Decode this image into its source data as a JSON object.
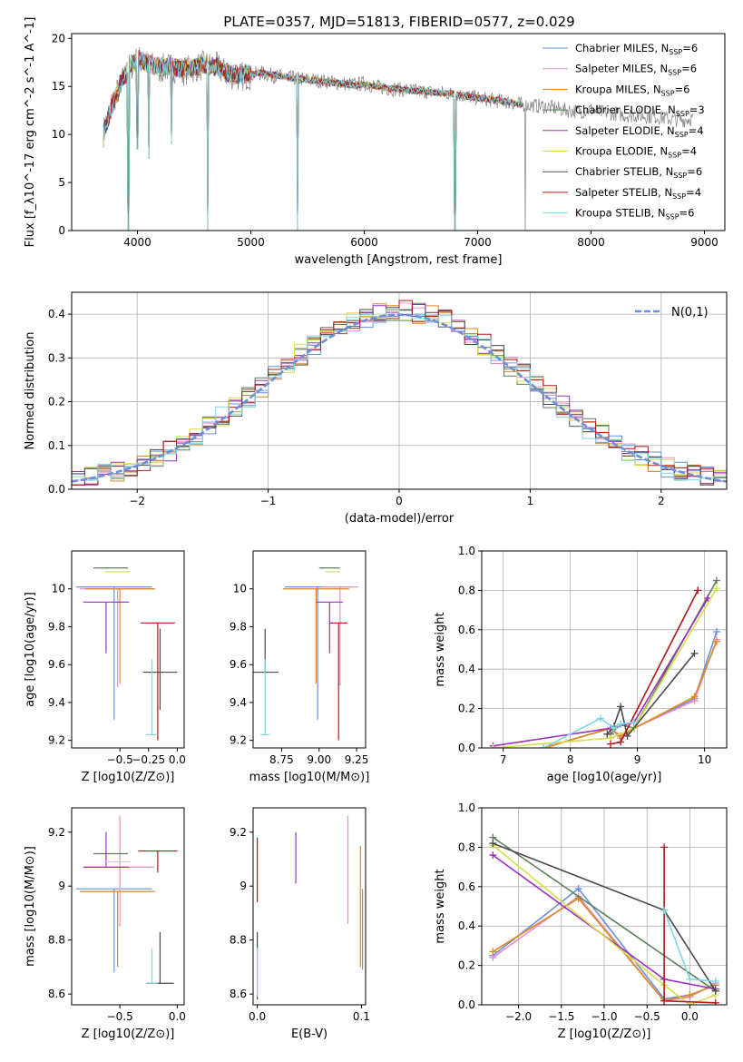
{
  "figure_title": "PLATE=0357, MJD=51813, FIBERID=0577, z=0.029",
  "palette": [
    "#6a8fdc",
    "#e58fc8",
    "#d88a1e",
    "#5a7f5a",
    "#9b30c0",
    "#d6de4a",
    "#4a4a4a",
    "#b01818",
    "#7fd8e0"
  ],
  "chart_data": [
    {
      "id": "spectrum",
      "type": "line",
      "title": "PLATE=0357, MJD=51813, FIBERID=0577, z=0.029",
      "xlabel": "wavelength [Angstrom, rest frame]",
      "ylabel": "Flux [f_λ10^-17 erg cm^-2 s^-1 A^-1]",
      "xlim": [
        3420,
        9180
      ],
      "ylim": [
        0,
        20.5
      ],
      "xticks": [
        4000,
        5000,
        6000,
        7000,
        8000,
        9000
      ],
      "yticks": [
        0,
        5,
        10,
        15,
        20
      ],
      "grid": false,
      "legend_position": "top-right",
      "data_x": [
        3700,
        3780,
        3850,
        3920,
        4000,
        4100,
        4200,
        4300,
        4400,
        4500,
        4600,
        4700,
        4800,
        4900,
        5000,
        5100,
        5200,
        5300,
        5400,
        5500,
        5600,
        5700,
        5800,
        5900,
        6000,
        6100,
        6200,
        6300,
        6400,
        6500,
        6600,
        6700,
        6800,
        6900,
        7000,
        7100,
        7200,
        7300,
        7400,
        7500,
        7600,
        7700,
        7800,
        7900,
        8000,
        8100,
        8200,
        8300,
        8400,
        8500,
        8600,
        8700,
        8800,
        8900
      ],
      "data_y": [
        10.2,
        13.5,
        15.0,
        16.8,
        17.8,
        17.2,
        16.8,
        17.0,
        16.6,
        16.9,
        17.2,
        17.0,
        16.2,
        16.0,
        16.2,
        16.4,
        16.1,
        16.0,
        15.8,
        15.7,
        15.6,
        15.5,
        15.3,
        15.2,
        15.3,
        15.0,
        14.8,
        14.7,
        14.6,
        14.5,
        14.4,
        14.3,
        14.2,
        14.0,
        13.8,
        13.6,
        13.5,
        13.3,
        13.1,
        13.0,
        12.9,
        12.7,
        12.5,
        12.4,
        12.6,
        12.3,
        12.2,
        12.0,
        12.0,
        11.9,
        11.8,
        11.6,
        11.5,
        11.7
      ],
      "model_x": [
        3700,
        3780,
        3850,
        3920,
        4000,
        4100,
        4200,
        4300,
        4400,
        4500,
        4600,
        4700,
        4800,
        4900,
        5000,
        5100,
        5200,
        5300,
        5400,
        5500,
        5600,
        5700,
        5800,
        5900,
        6000,
        6100,
        6200,
        6300,
        6400,
        6500,
        6600,
        6700,
        6800,
        6900,
        7000,
        7100,
        7200,
        7300,
        7400
      ],
      "model_y": [
        10.0,
        13.2,
        15.2,
        16.9,
        17.9,
        17.4,
        17.0,
        17.1,
        16.8,
        17.0,
        17.2,
        17.0,
        16.4,
        16.2,
        16.3,
        16.4,
        16.2,
        16.0,
        15.8,
        15.7,
        15.6,
        15.4,
        15.3,
        15.1,
        15.2,
        15.0,
        14.8,
        14.7,
        14.6,
        14.5,
        14.4,
        14.3,
        14.2,
        14.0,
        13.8,
        13.7,
        13.5,
        13.3,
        13.1
      ],
      "drops": [
        [
          3920,
          0
        ],
        [
          4000,
          8.5
        ],
        [
          4100,
          7.5
        ],
        [
          4300,
          9.0
        ],
        [
          4620,
          0
        ],
        [
          5410,
          0
        ],
        [
          6800,
          0
        ],
        [
          7420,
          0
        ]
      ],
      "series": [
        {
          "name": "Chabrier MILES, N",
          "nssp": "=6"
        },
        {
          "name": "Salpeter MILES, N",
          "nssp": "=6"
        },
        {
          "name": "Kroupa MILES, N",
          "nssp": "=6"
        },
        {
          "name": "Chabrier ELODIE, N",
          "nssp": "=3"
        },
        {
          "name": "Salpeter ELODIE, N",
          "nssp": "=4"
        },
        {
          "name": "Kroupa ELODIE, N",
          "nssp": "=4"
        },
        {
          "name": "Chabrier STELIB, N",
          "nssp": "=6"
        },
        {
          "name": "Salpeter STELIB, N",
          "nssp": "=4"
        },
        {
          "name": "Kroupa STELIB, N",
          "nssp": "=6"
        }
      ]
    },
    {
      "id": "residuals",
      "type": "histogram",
      "xlabel": "(data-model)/error",
      "ylabel": "Normed distribution",
      "xlim": [
        -2.5,
        2.5
      ],
      "ylim": [
        0,
        0.45
      ],
      "xticks": [
        -2,
        -1,
        0,
        1,
        2
      ],
      "yticks": [
        0.0,
        0.1,
        0.2,
        0.3,
        0.4
      ],
      "grid": true,
      "legend_position": "top-right",
      "legend_label": "N(0,1)",
      "bin_width": 0.1,
      "bin_start": -2.5,
      "series_offsets": [
        0.012,
        -0.01,
        0.006,
        -0.004,
        0.014,
        -0.012,
        0.008,
        0.016,
        -0.008
      ]
    },
    {
      "id": "age_vs_Z",
      "type": "errorbar",
      "xlabel": "Z [log10(Z/Z⊙)]",
      "ylabel": "age [log10(age/yr)]",
      "xlim": [
        -0.92,
        0.06
      ],
      "ylim": [
        9.16,
        10.2
      ],
      "xticks": [
        -0.5,
        -0.25,
        0.0
      ],
      "xticklabels": [
        "−0.5",
        "−0.25",
        "0.0"
      ],
      "yticks": [
        9.2,
        9.4,
        9.6,
        9.8,
        10.0
      ],
      "grid": false,
      "points": [
        {
          "x": -0.55,
          "y": 10.01,
          "xerr": 0.33,
          "yerr": [
            0.7,
            0.0
          ]
        },
        {
          "x": -0.52,
          "y": 10.0,
          "xerr": 0.33,
          "yerr": [
            0.52,
            0.0
          ]
        },
        {
          "x": -0.5,
          "y": 10.0,
          "xerr": 0.3,
          "yerr": [
            0.5,
            0.0
          ]
        },
        {
          "x": -0.58,
          "y": 10.11,
          "xerr": 0.15,
          "yerr": [
            0.0,
            0.0
          ]
        },
        {
          "x": -0.62,
          "y": 9.93,
          "xerr": 0.2,
          "yerr": [
            0.27,
            0.0
          ]
        },
        {
          "x": -0.52,
          "y": 10.09,
          "xerr": 0.11,
          "yerr": [
            0.0,
            0.0
          ]
        },
        {
          "x": -0.15,
          "y": 9.56,
          "xerr": 0.15,
          "yerr": [
            0.2,
            0.23
          ]
        },
        {
          "x": -0.17,
          "y": 9.82,
          "xerr": 0.15,
          "yerr": [
            0.62,
            0.0
          ]
        },
        {
          "x": -0.22,
          "y": 9.23,
          "xerr": 0.05,
          "yerr": [
            0.0,
            0.4
          ]
        }
      ]
    },
    {
      "id": "age_vs_mass",
      "type": "errorbar",
      "xlabel": "mass [log10(M/M⊙)]",
      "ylabel": "",
      "xlim": [
        8.56,
        9.31
      ],
      "ylim": [
        9.16,
        10.2
      ],
      "xticks": [
        8.75,
        9.0,
        9.25
      ],
      "xticklabels": [
        "8.75",
        "9.00",
        "9.25"
      ],
      "yticks": [
        9.2,
        9.4,
        9.6,
        9.8,
        10.0
      ],
      "grid": false,
      "points": [
        {
          "x": 8.99,
          "y": 10.01,
          "xerr": 0.22,
          "yerr": [
            0.7,
            0.0
          ]
        },
        {
          "x": 9.14,
          "y": 10.01,
          "xerr": 0.12,
          "yerr": [
            0.52,
            0.0
          ]
        },
        {
          "x": 8.98,
          "y": 10.0,
          "xerr": 0.22,
          "yerr": [
            0.5,
            0.0
          ]
        },
        {
          "x": 9.07,
          "y": 10.11,
          "xerr": 0.07,
          "yerr": [
            0.0,
            0.0
          ]
        },
        {
          "x": 9.07,
          "y": 9.93,
          "xerr": 0.09,
          "yerr": [
            0.27,
            0.0
          ]
        },
        {
          "x": 9.09,
          "y": 10.09,
          "xerr": 0.05,
          "yerr": [
            0.0,
            0.0
          ]
        },
        {
          "x": 8.64,
          "y": 9.56,
          "xerr": 0.09,
          "yerr": [
            0.0,
            0.23
          ]
        },
        {
          "x": 9.13,
          "y": 9.82,
          "xerr": 0.06,
          "yerr": [
            0.62,
            0.0
          ]
        },
        {
          "x": 8.64,
          "y": 9.23,
          "xerr": 0.03,
          "yerr": [
            0.0,
            0.4
          ]
        }
      ]
    },
    {
      "id": "weight_vs_age",
      "type": "line",
      "xlabel": "age [log10(age/yr)]",
      "ylabel": "mass weight",
      "xlim": [
        6.68,
        10.33
      ],
      "ylim": [
        0,
        1.0
      ],
      "xticks": [
        7,
        8,
        9,
        10
      ],
      "yticks": [
        0.0,
        0.2,
        0.4,
        0.6,
        0.8,
        1.0
      ],
      "grid": true,
      "series": [
        {
          "x": [
            7.6,
            8.6,
            8.75,
            8.95,
            9.85,
            10.18
          ],
          "y": [
            0.0,
            0.1,
            0.05,
            0.1,
            0.25,
            0.59
          ]
        },
        {
          "x": [
            7.6,
            8.6,
            8.75,
            8.95,
            9.85,
            10.18
          ],
          "y": [
            0.0,
            0.1,
            0.05,
            0.1,
            0.24,
            0.55
          ]
        },
        {
          "x": [
            7.7,
            8.6,
            8.75,
            8.95,
            9.85,
            10.18
          ],
          "y": [
            0.01,
            0.1,
            0.06,
            0.1,
            0.26,
            0.54
          ]
        },
        {
          "x": [
            8.6,
            8.75,
            8.95,
            10.18
          ],
          "y": [
            0.07,
            0.12,
            0.1,
            0.85
          ]
        },
        {
          "x": [
            6.85,
            8.6,
            8.95,
            10.05
          ],
          "y": [
            0.01,
            0.1,
            0.13,
            0.76
          ]
        },
        {
          "x": [
            6.85,
            8.6,
            8.95,
            10.18
          ],
          "y": [
            0.0,
            0.05,
            0.1,
            0.81
          ]
        },
        {
          "x": [
            8.55,
            8.65,
            8.75,
            8.85,
            9.85
          ],
          "y": [
            0.07,
            0.11,
            0.21,
            0.06,
            0.48
          ]
        },
        {
          "x": [
            8.6,
            8.75,
            9.9
          ],
          "y": [
            0.02,
            0.03,
            0.8
          ]
        },
        {
          "x": [
            7.6,
            8.45,
            8.65,
            8.75,
            8.95
          ],
          "y": [
            0.0,
            0.15,
            0.1,
            0.12,
            0.13
          ]
        }
      ]
    },
    {
      "id": "mass_vs_Z",
      "type": "errorbar",
      "xlabel": "Z [log10(Z/Z⊙)]",
      "ylabel": "mass [log10(M/M⊙)]",
      "xlim": [
        -0.92,
        0.06
      ],
      "ylim": [
        8.56,
        9.29
      ],
      "xticks": [
        -0.5,
        0.0
      ],
      "xticklabels": [
        "−0.5",
        "0.0"
      ],
      "yticks": [
        8.6,
        8.8,
        9.0,
        9.2
      ],
      "grid": false,
      "points": [
        {
          "x": -0.55,
          "y": 8.99,
          "xerr": 0.33,
          "yerr": [
            0.31,
            0.0
          ]
        },
        {
          "x": -0.5,
          "y": 9.07,
          "xerr": 0.3,
          "yerr": [
            0.22,
            0.19
          ]
        },
        {
          "x": -0.52,
          "y": 8.98,
          "xerr": 0.33,
          "yerr": [
            0.28,
            0.0
          ]
        },
        {
          "x": -0.58,
          "y": 9.12,
          "xerr": 0.15,
          "yerr": [
            0.0,
            0.0
          ]
        },
        {
          "x": -0.62,
          "y": 9.07,
          "xerr": 0.2,
          "yerr": [
            0.0,
            0.13
          ]
        },
        {
          "x": -0.52,
          "y": 9.09,
          "xerr": 0.11,
          "yerr": [
            0.0,
            0.0
          ]
        },
        {
          "x": -0.15,
          "y": 8.64,
          "xerr": 0.12,
          "yerr": [
            0.0,
            0.19
          ]
        },
        {
          "x": -0.17,
          "y": 9.13,
          "xerr": 0.17,
          "yerr": [
            0.08,
            0.0
          ]
        },
        {
          "x": -0.22,
          "y": 8.64,
          "xerr": 0.05,
          "yerr": [
            0.0,
            0.13
          ]
        }
      ]
    },
    {
      "id": "mass_vs_ebv",
      "type": "errorbar",
      "xlabel": "E(B-V)",
      "ylabel": "",
      "xlim": [
        -0.004,
        0.104
      ],
      "ylim": [
        8.56,
        9.29
      ],
      "xticks": [
        0.0,
        0.1
      ],
      "xticklabels": [
        "0.0",
        "0.1"
      ],
      "yticks": [
        8.6,
        8.8,
        9.0,
        9.2
      ],
      "grid": false,
      "points": [
        {
          "x": 0.101,
          "y": 8.99,
          "xerr": 0.0,
          "yerr": [
            0.3,
            0.0
          ]
        },
        {
          "x": 0.087,
          "y": 9.07,
          "xerr": 0.0,
          "yerr": [
            0.21,
            0.19
          ]
        },
        {
          "x": 0.099,
          "y": 8.98,
          "xerr": 0.0,
          "yerr": [
            0.28,
            0.17
          ]
        },
        {
          "x": 0.0,
          "y": 9.12,
          "xerr": 0.0,
          "yerr": [
            0.0,
            0.0
          ]
        },
        {
          "x": 0.037,
          "y": 9.07,
          "xerr": 0.0,
          "yerr": [
            0.06,
            0.13
          ]
        },
        {
          "x": 0.0,
          "y": 9.09,
          "xerr": 0.0,
          "yerr": [
            0.0,
            0.0
          ]
        },
        {
          "x": 0.0,
          "y": 8.7,
          "xerr": 0.0,
          "yerr": [
            0.12,
            0.13
          ]
        },
        {
          "x": 0.0,
          "y": 9.07,
          "xerr": 0.0,
          "yerr": [
            0.13,
            0.11
          ]
        },
        {
          "x": 0.0,
          "y": 8.64,
          "xerr": 0.0,
          "yerr": [
            0.05,
            0.13
          ]
        }
      ]
    },
    {
      "id": "weight_vs_Z",
      "type": "line",
      "xlabel": "Z [log10(Z/Z⊙)]",
      "ylabel": "mass weight",
      "xlim": [
        -2.43,
        0.43
      ],
      "ylim": [
        0,
        1.0
      ],
      "xticks": [
        -2.0,
        -1.5,
        -1.0,
        -0.5,
        0.0
      ],
      "xticklabels": [
        "−2.0",
        "−1.5",
        "−1.0",
        "−0.5",
        "0.0"
      ],
      "yticks": [
        0.0,
        0.2,
        0.4,
        0.6,
        0.8,
        1.0
      ],
      "grid": true,
      "series": [
        {
          "x": [
            -2.3,
            -1.3,
            -0.3,
            0.0,
            0.3
          ],
          "y": [
            0.25,
            0.59,
            0.03,
            0.05,
            0.1
          ]
        },
        {
          "x": [
            -2.3,
            -1.3,
            -0.3,
            0.0,
            0.3
          ],
          "y": [
            0.24,
            0.55,
            0.02,
            0.04,
            0.11
          ]
        },
        {
          "x": [
            -2.3,
            -1.3,
            -0.3,
            0.0,
            0.3
          ],
          "y": [
            0.27,
            0.54,
            0.02,
            0.05,
            0.1
          ]
        },
        {
          "x": [
            -2.3,
            0.3
          ],
          "y": [
            0.85,
            0.07
          ]
        },
        {
          "x": [
            -2.3,
            -0.3,
            0.3
          ],
          "y": [
            0.76,
            0.13,
            0.08
          ]
        },
        {
          "x": [
            -2.3,
            -0.3,
            0.0,
            0.3
          ],
          "y": [
            0.81,
            0.1,
            0.0,
            0.05
          ]
        },
        {
          "x": [
            -2.3,
            -0.3,
            0.3
          ],
          "y": [
            0.82,
            0.48,
            0.07
          ]
        },
        {
          "x": [
            -0.3,
            -0.3,
            0.3
          ],
          "y": [
            0.8,
            0.02,
            0.01
          ]
        },
        {
          "x": [
            -0.3,
            0.0,
            0.3
          ],
          "y": [
            0.48,
            0.13,
            0.12
          ]
        }
      ]
    }
  ]
}
